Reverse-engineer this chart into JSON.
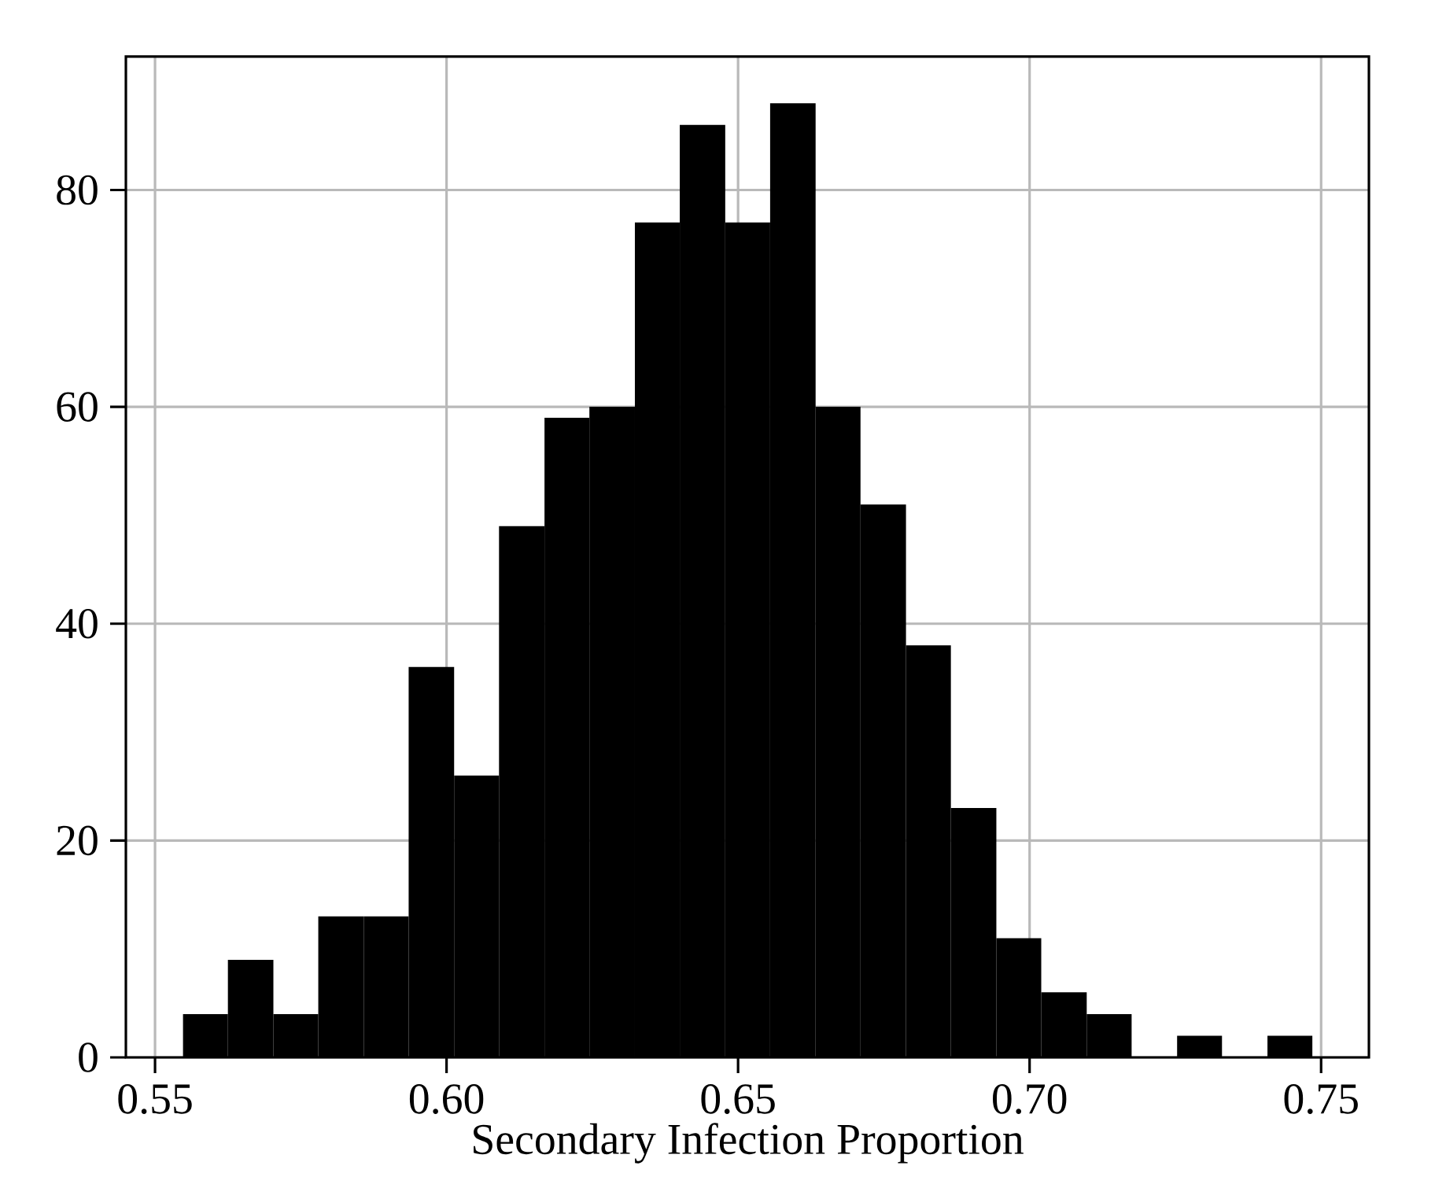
{
  "chart_data": {
    "type": "histogram",
    "xlabel": "Secondary Infection Proportion",
    "bins": [
      0.5548,
      0.5625,
      0.5703,
      0.578,
      0.5858,
      0.5935,
      0.6013,
      0.609,
      0.6168,
      0.6245,
      0.6323,
      0.64,
      0.6478,
      0.6555,
      0.6633,
      0.671,
      0.6788,
      0.6865,
      0.6943,
      0.702,
      0.7098,
      0.7175,
      0.7253,
      0.733,
      0.7408,
      0.7485
    ],
    "values": [
      4,
      9,
      4,
      13,
      13,
      36,
      26,
      49,
      59,
      60,
      77,
      86,
      77,
      88,
      60,
      51,
      38,
      23,
      11,
      6,
      4,
      0,
      2,
      0,
      2
    ],
    "color": "#000000",
    "xlim": [
      0.545,
      0.7582
    ],
    "ylim": [
      0,
      92.3
    ],
    "xticks": [
      0.55,
      {
        "value": 0.6,
        "label": "0.60"
      },
      0.65,
      {
        "value": 0.7,
        "label": "0.70"
      },
      0.75
    ],
    "yticks": [
      0,
      20,
      40,
      60,
      80
    ],
    "grid": true
  }
}
